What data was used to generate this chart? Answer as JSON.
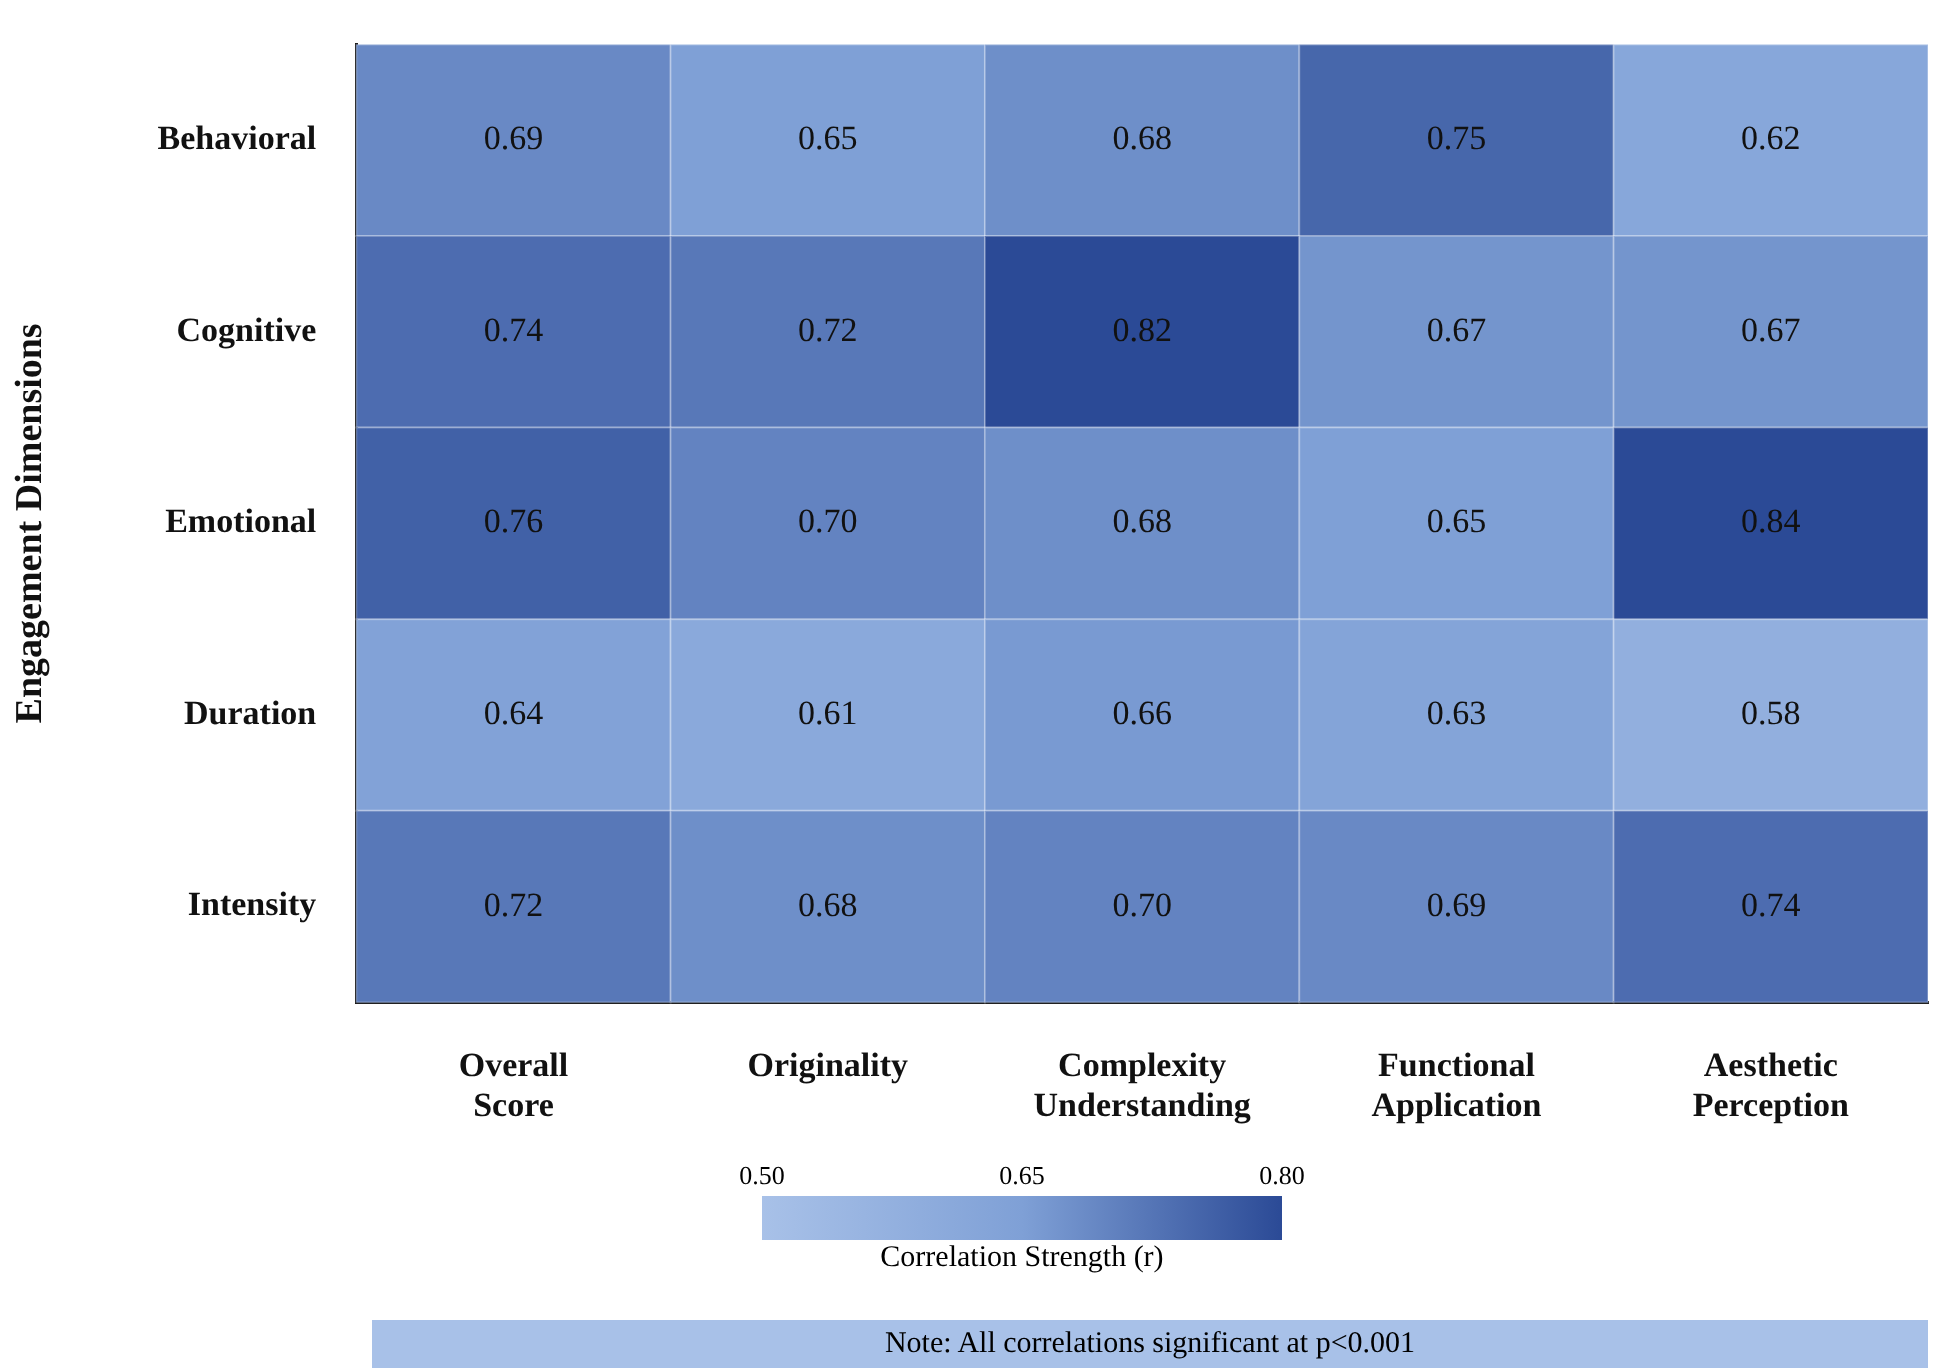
{
  "chart_data": {
    "type": "heatmap",
    "ylabel": "Engagement Dimensions",
    "clabel": "Correlation Strength (r)",
    "categories": [
      "Overall Score",
      "Originality",
      "Complexity Understanding",
      "Functional Application",
      "Aesthetic Perception"
    ],
    "y_categories": [
      "Behavioral",
      "Cognitive",
      "Emotional",
      "Duration",
      "Intensity"
    ],
    "cells": [
      [
        0.69,
        0.65,
        0.68,
        0.75,
        0.62
      ],
      [
        0.74,
        0.72,
        0.82,
        0.67,
        0.67
      ],
      [
        0.76,
        0.7,
        0.68,
        0.65,
        0.84
      ],
      [
        0.64,
        0.61,
        0.66,
        0.63,
        0.58
      ],
      [
        0.72,
        0.68,
        0.7,
        0.69,
        0.74
      ]
    ],
    "cell_labels": [
      [
        "0.69",
        "0.65",
        "0.68",
        "0.75",
        "0.62"
      ],
      [
        "0.74",
        "0.72",
        "0.82",
        "0.67",
        "0.67"
      ],
      [
        "0.76",
        "0.70",
        "0.68",
        "0.65",
        "0.84"
      ],
      [
        "0.64",
        "0.61",
        "0.66",
        "0.63",
        "0.58"
      ],
      [
        "0.72",
        "0.68",
        "0.70",
        "0.69",
        "0.74"
      ]
    ],
    "data_labels": true,
    "clim": [
      0.5,
      0.8
    ],
    "cticks": [
      {
        "value": 0.5,
        "label": "0.50"
      },
      {
        "value": 0.65,
        "label": "0.65"
      },
      {
        "value": 0.8,
        "label": "0.80"
      }
    ],
    "annotations": [
      "Note: All correlations significant at p<0.001"
    ]
  }
}
